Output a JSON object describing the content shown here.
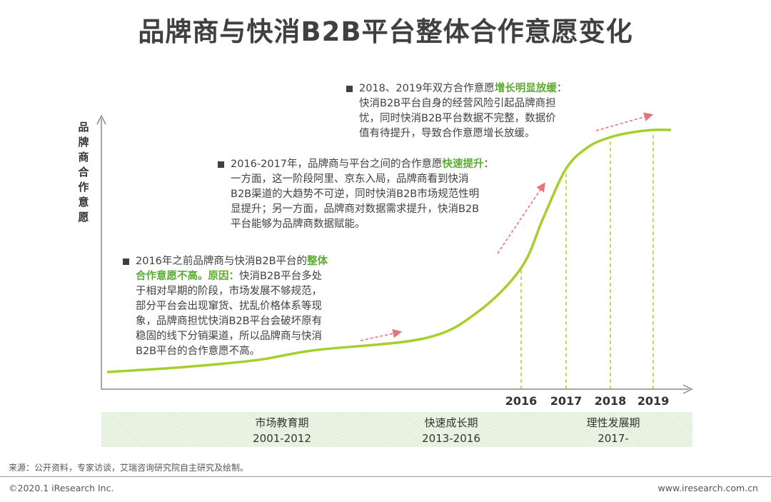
{
  "title": "品牌商与快消B2B平台整体合作意愿变化",
  "y_axis_label": [
    "品",
    "牌",
    "商",
    "合",
    "作",
    "意",
    "愿"
  ],
  "notes": [
    {
      "lines": [
        [
          {
            "t": "2016年之前品牌商与快消B2B平台的"
          },
          {
            "t": "整体",
            "hl": true
          }
        ],
        [
          {
            "t": "合作意愿不高。原因：",
            "hl": true
          },
          {
            "t": "快消B2B平台多处"
          }
        ],
        [
          {
            "t": "于相对早期的阶段，市场发展不够规范，"
          }
        ],
        [
          {
            "t": "部分平台会出现窜货、扰乱价格体系等现"
          }
        ],
        [
          {
            "t": "象，品牌商担忧快消B2B平台会破坏原有"
          }
        ],
        [
          {
            "t": "稳固的线下分销渠道，所以品牌商与快消"
          }
        ],
        [
          {
            "t": "B2B平台的合作意愿不高。"
          }
        ]
      ]
    },
    {
      "lines": [
        [
          {
            "t": "2016-2017年，品牌商与平台之间的合作意愿"
          },
          {
            "t": "快速提升",
            "hl": true
          },
          {
            "t": "："
          }
        ],
        [
          {
            "t": "一方面，这一阶段阿里、京东入局，品牌商看到快消"
          }
        ],
        [
          {
            "t": "B2B渠道的大趋势不可逆，同时快消B2B市场规范性明"
          }
        ],
        [
          {
            "t": "显提升；另一方面，品牌商对数据需求提升，快消B2B"
          }
        ],
        [
          {
            "t": "平台能够为品牌商数据赋能。"
          }
        ]
      ]
    },
    {
      "lines": [
        [
          {
            "t": "2018、2019年双方合作意愿"
          },
          {
            "t": "增长明显放缓",
            "hl": true
          },
          {
            "t": "："
          }
        ],
        [
          {
            "t": "快消B2B平台自身的经营风险引起品牌商担"
          }
        ],
        [
          {
            "t": "忧，同时快消B2B平台数据不完整，数据价"
          }
        ],
        [
          {
            "t": "值有待提升，导致合作意愿增长放缓。"
          }
        ]
      ]
    }
  ],
  "phases": [
    {
      "name": "市场教育期",
      "years": "2001-2012"
    },
    {
      "name": "快速成长期",
      "years": "2013-2016"
    },
    {
      "name": "理性发展期",
      "years": "2017-"
    }
  ],
  "source": "来源：公开资料，专家访谈，艾瑞咨询研究院自主研究及绘制。",
  "copyright": "©2020.1 iResearch Inc.",
  "website": "www.iresearch.com.cn",
  "colors": {
    "curve": "#a6cf2e",
    "arrow": "#e8727a",
    "highlight": "#5aad2f",
    "axis": "#8a8a8a",
    "band": "#e3f1dc"
  },
  "chart_data": {
    "type": "line",
    "title": "品牌商与快消B2B平台整体合作意愿变化",
    "ylabel": "品牌商合作意愿",
    "xlabel": "",
    "x_ticks": [
      "2016",
      "2017",
      "2018",
      "2019"
    ],
    "series": [
      {
        "x": [
          2001,
          2005,
          2009,
          2012,
          2014,
          2015,
          2016,
          2016.5,
          2017,
          2017.5,
          2018,
          2018.5,
          2019,
          2019.4
        ],
        "values": [
          0.0,
          0.02,
          0.05,
          0.09,
          0.14,
          0.25,
          0.43,
          0.64,
          0.84,
          0.93,
          0.97,
          0.99,
          1.0,
          1.0
        ]
      }
    ],
    "y_scale": "qualitative (relative level, no numeric ticks)",
    "grid": false,
    "annotations": [
      "2016年之前：整体合作意愿不高",
      "2016-2017年：快速提升",
      "2018、2019年：增长明显放缓"
    ]
  }
}
